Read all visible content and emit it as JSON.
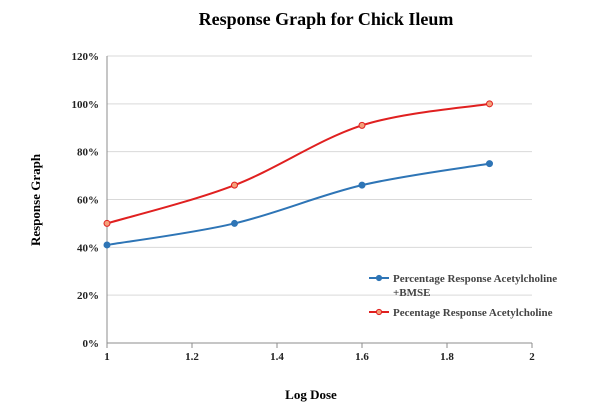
{
  "chart_data": {
    "type": "line",
    "title": "Response Graph for Chick Ileum",
    "xlabel": "Log Dose",
    "ylabel": "Response Graph",
    "xlim": [
      1,
      2
    ],
    "ylim": [
      0,
      120
    ],
    "x_ticks": [
      1,
      1.2,
      1.4,
      1.6,
      1.8,
      2
    ],
    "x_tick_labels": [
      "1",
      "1.2",
      "1.4",
      "1.6",
      "1.8",
      "2"
    ],
    "y_ticks": [
      0,
      20,
      40,
      60,
      80,
      100,
      120
    ],
    "y_tick_labels": [
      "0%",
      "20%",
      "40%",
      "60%",
      "80%",
      "100%",
      "120%"
    ],
    "grid": true,
    "legend_position": "right",
    "series": [
      {
        "name": "Percentage Response Acetylcholine +BMSE",
        "color": "#2e75b6",
        "x": [
          1,
          1.3,
          1.6,
          1.9
        ],
        "y": [
          41,
          50,
          66,
          75
        ]
      },
      {
        "name": "Pecentage Response Acetylcholine",
        "color": "#e02020",
        "x": [
          1,
          1.3,
          1.6,
          1.9
        ],
        "y": [
          50,
          66,
          91,
          100
        ]
      }
    ]
  }
}
